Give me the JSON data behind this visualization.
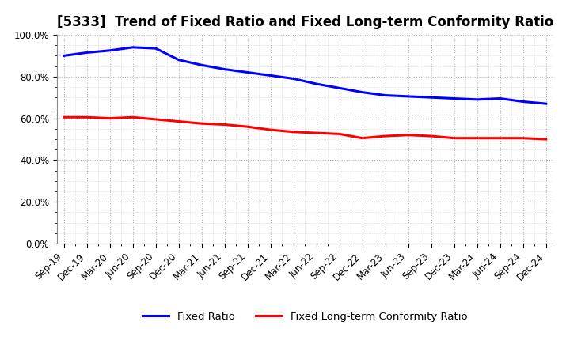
{
  "title": "[5333]  Trend of Fixed Ratio and Fixed Long-term Conformity Ratio",
  "x_labels": [
    "Sep-19",
    "Dec-19",
    "Mar-20",
    "Jun-20",
    "Sep-20",
    "Dec-20",
    "Mar-21",
    "Jun-21",
    "Sep-21",
    "Dec-21",
    "Mar-22",
    "Jun-22",
    "Sep-22",
    "Dec-22",
    "Mar-23",
    "Jun-23",
    "Sep-23",
    "Dec-23",
    "Mar-24",
    "Jun-24",
    "Sep-24",
    "Dec-24"
  ],
  "fixed_ratio": [
    90.0,
    91.5,
    92.5,
    94.0,
    93.5,
    88.0,
    85.5,
    83.5,
    82.0,
    80.5,
    79.0,
    76.5,
    74.5,
    72.5,
    71.0,
    70.5,
    70.0,
    69.5,
    69.0,
    69.5,
    68.0,
    67.0
  ],
  "fixed_lt_ratio": [
    60.5,
    60.5,
    60.0,
    60.5,
    59.5,
    58.5,
    57.5,
    57.0,
    56.0,
    54.5,
    53.5,
    53.0,
    52.5,
    50.5,
    51.5,
    52.0,
    51.5,
    50.5,
    50.5,
    50.5,
    50.5,
    50.0
  ],
  "ylim": [
    0,
    100
  ],
  "yticks": [
    0,
    20,
    40,
    60,
    80,
    100
  ],
  "ytick_labels": [
    "0.0%",
    "20.0%",
    "40.0%",
    "60.0%",
    "80.0%",
    "100.0%"
  ],
  "blue_color": "#0000FF",
  "red_color": "#FF0000",
  "grid_color": "#AAAAAA",
  "bg_color": "#FFFFFF",
  "legend_fixed_ratio": "Fixed Ratio",
  "legend_lt_ratio": "Fixed Long-term Conformity Ratio",
  "title_fontsize": 12,
  "axis_fontsize": 8.5,
  "legend_fontsize": 9.5,
  "line_width": 2.2
}
